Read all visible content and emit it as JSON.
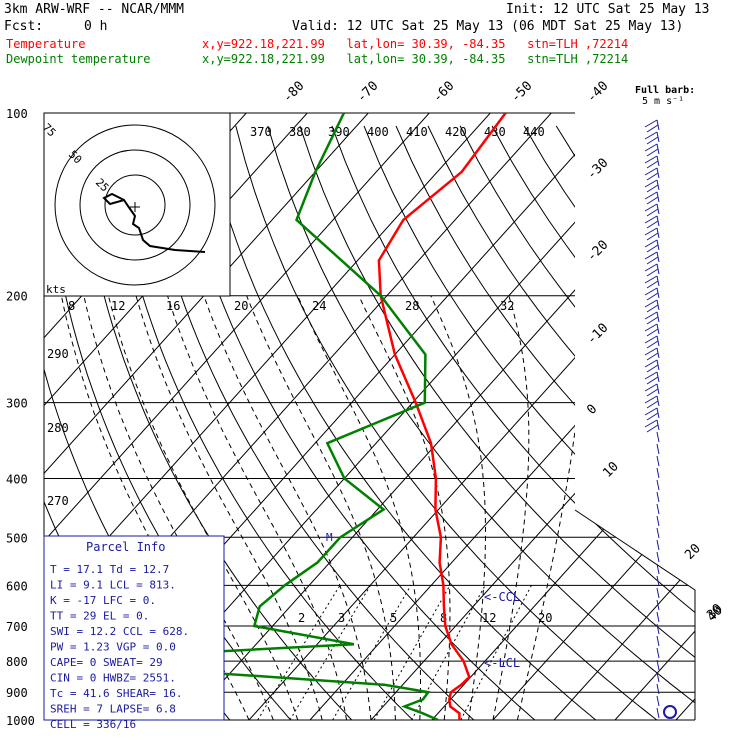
{
  "header": {
    "model": "3km ARW-WRF -- NCAR/MMM",
    "init": "Init: 12 UTC Sat 25 May 13",
    "fcst_label": "Fcst:",
    "fcst_value": "0 h",
    "valid": "Valid: 12 UTC Sat 25 May 13 (06 MDT Sat 25 May 13)",
    "temperature_label": "Temperature",
    "temperature_info": "x,y=922.18,221.99   lat,lon= 30.39, -84.35   stn=TLH ,72214",
    "dewpoint_label": "Dewpoint temperature",
    "dewpoint_info": "x,y=922.18,221.99   lat,lon= 30.39, -84.35   stn=TLH ,72214"
  },
  "colors": {
    "temperature": "#ff0000",
    "dewpoint": "#008000",
    "parcel_box": "#1a1aa0",
    "isotherm": "#000000",
    "hodograph": "#000000"
  },
  "barb_legend": {
    "line1": "Full barb:",
    "line2": "5 m s⁻¹"
  },
  "pressure_labels": [
    "100",
    "200",
    "300",
    "400",
    "500",
    "600",
    "700",
    "800",
    "900",
    "1000"
  ],
  "isotherm_top_labels": [
    "-80",
    "-70",
    "-60",
    "-50",
    "-40"
  ],
  "isotherm_right_labels": [
    "-30",
    "-20",
    "-10",
    "0",
    "10",
    "20",
    "30",
    "40"
  ],
  "theta_labels": [
    "370",
    "380",
    "390",
    "400",
    "410",
    "420",
    "430",
    "440"
  ],
  "theta_lower_labels": [
    "290",
    "280",
    "270"
  ],
  "mixing_ratio_labels_top": [
    "8",
    "12",
    "16",
    "20",
    "24",
    "28",
    "32"
  ],
  "mixing_ratio_labels_low": [
    "2",
    "3",
    "5",
    "8",
    "12",
    "20"
  ],
  "hodograph": {
    "rings": [
      "75",
      "50",
      "25"
    ],
    "units": "kts"
  },
  "annotations": {
    "ccl": "<-CCL",
    "lcl": "<-LCL",
    "m_marker": "M"
  },
  "parcel_info": {
    "title": "Parcel Info",
    "rows": [
      "T   =    17.1  Td  = 12.7",
      "LI  =    9.1  LCL =  813.",
      "K   =    -17  LFC =    0.",
      "TT  =     29  EL  =    0.",
      "SWI =   12.2  CCL =  628.",
      "PW  =   1.23  VGP =   0.0",
      "CAPE=      0  SWEAT=   29",
      "CIN =      0  HWBZ= 2551.",
      "Tc  =   41.6  SHEAR=  16.",
      "SREH =     7  LAPSE=  6.8",
      "CELL = 336/16"
    ]
  },
  "chart_data": {
    "type": "line",
    "title": "",
    "xlabel": "",
    "ylabel": "",
    "y_axis": "pressure (hPa), log scale",
    "ylim": [
      1000,
      100
    ],
    "series": [
      {
        "name": "Temperature",
        "color": "#ff0000",
        "points": [
          {
            "p": 1000,
            "t": 24.5
          },
          {
            "p": 975,
            "t": 23.5
          },
          {
            "p": 950,
            "t": 21.0
          },
          {
            "p": 925,
            "t": 19.8
          },
          {
            "p": 900,
            "t": 19.0
          },
          {
            "p": 875,
            "t": 19.6
          },
          {
            "p": 850,
            "t": 19.8
          },
          {
            "p": 800,
            "t": 16.5
          },
          {
            "p": 750,
            "t": 12.0
          },
          {
            "p": 700,
            "t": 8.3
          },
          {
            "p": 650,
            "t": 5.2
          },
          {
            "p": 600,
            "t": 2.0
          },
          {
            "p": 550,
            "t": -2.0
          },
          {
            "p": 500,
            "t": -5.5
          },
          {
            "p": 450,
            "t": -10.5
          },
          {
            "p": 400,
            "t": -15.0
          },
          {
            "p": 350,
            "t": -21.0
          },
          {
            "p": 300,
            "t": -29.5
          },
          {
            "p": 250,
            "t": -40.0
          },
          {
            "p": 200,
            "t": -51.0
          },
          {
            "p": 175,
            "t": -56.5
          },
          {
            "p": 150,
            "t": -58.5
          },
          {
            "p": 125,
            "t": -56.0
          },
          {
            "p": 100,
            "t": -57.5
          }
        ]
      },
      {
        "name": "Dewpoint temperature",
        "color": "#008000",
        "points": [
          {
            "p": 1000,
            "t": 21.0
          },
          {
            "p": 975,
            "t": 17.5
          },
          {
            "p": 950,
            "t": 13.5
          },
          {
            "p": 925,
            "t": 15.5
          },
          {
            "p": 900,
            "t": 15.3
          },
          {
            "p": 875,
            "t": 7.0
          },
          {
            "p": 850,
            "t": -12.0
          },
          {
            "p": 800,
            "t": -54.0
          },
          {
            "p": 750,
            "t": -4.0
          },
          {
            "p": 700,
            "t": -23.0
          },
          {
            "p": 650,
            "t": -25.0
          },
          {
            "p": 600,
            "t": -24.0
          },
          {
            "p": 550,
            "t": -22.0
          },
          {
            "p": 500,
            "t": -22.0
          },
          {
            "p": 450,
            "t": -19.0
          },
          {
            "p": 400,
            "t": -30.0
          },
          {
            "p": 350,
            "t": -38.0
          },
          {
            "p": 300,
            "t": -28.0
          },
          {
            "p": 250,
            "t": -35.0
          },
          {
            "p": 200,
            "t": -51.0
          },
          {
            "p": 150,
            "t": -76.0
          },
          {
            "p": 125,
            "t": -80.0
          },
          {
            "p": 100,
            "t": -84.0
          }
        ]
      }
    ]
  }
}
